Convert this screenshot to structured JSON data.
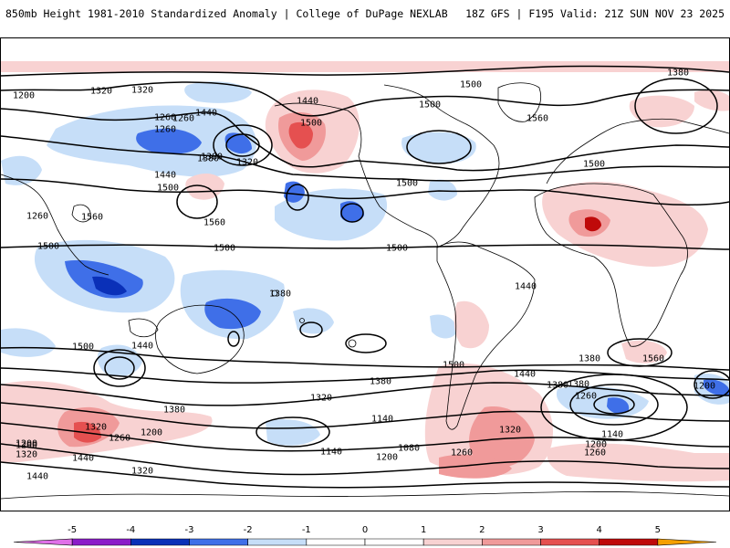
{
  "header": {
    "left_title": "850mb Height 1981-2010 Standardized Anomaly | College of DuPage NEXLAB",
    "right_title": "18Z GFS | F195 Valid: 21Z SUN NOV 23 2025"
  },
  "colors": {
    "neg5": "#e070e8",
    "neg4": "#8b1cc9",
    "neg3": "#0a30b8",
    "neg2": "#3f6fe8",
    "neg1": "#c6def8",
    "zero": "#ffffff",
    "pos1": "#f8d2d2",
    "pos2": "#f09a9a",
    "pos3": "#e55050",
    "pos4": "#bf0a0a",
    "pos5": "#f5a000"
  },
  "colorbar": {
    "ticks": [
      "-5",
      "-4",
      "-3",
      "-2",
      "-1",
      "0",
      "1",
      "2",
      "3",
      "4",
      "5"
    ]
  },
  "contour_labels": [
    "1380",
    "1320",
    "1260",
    "1260",
    "1320",
    "1380",
    "1440",
    "1500",
    "1440",
    "1500",
    "1560",
    "1560",
    "1500",
    "1500",
    "1500",
    "1500",
    "1440",
    "1380",
    "1320",
    "1260",
    "1200",
    "1140",
    "1080",
    "1140",
    "1200",
    "1260",
    "1320",
    "1200",
    "1320",
    "1440",
    "1320",
    "1380",
    "1260",
    "1200",
    "1320",
    "1260",
    "1380",
    "1440",
    "1500",
    "1500",
    "1560",
    "1380",
    "1320",
    "1380",
    "1440",
    "1380",
    "1500",
    "1440",
    "1560",
    "1500",
    "1500",
    "1440",
    "1380",
    "1260",
    "1200",
    "1140",
    "1200",
    "1260",
    "1200"
  ]
}
